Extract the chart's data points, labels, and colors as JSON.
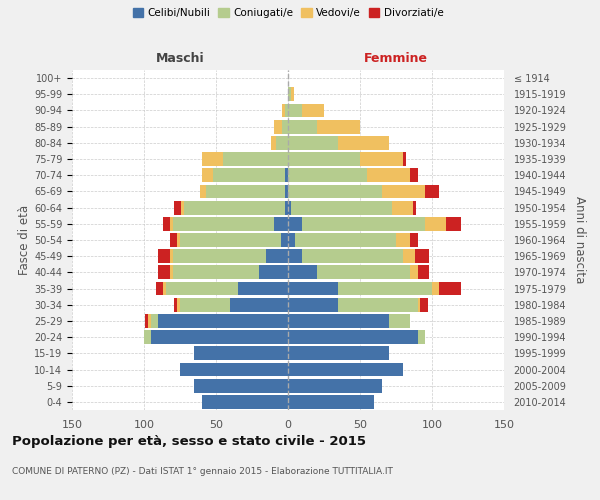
{
  "age_groups": [
    "0-4",
    "5-9",
    "10-14",
    "15-19",
    "20-24",
    "25-29",
    "30-34",
    "35-39",
    "40-44",
    "45-49",
    "50-54",
    "55-59",
    "60-64",
    "65-69",
    "70-74",
    "75-79",
    "80-84",
    "85-89",
    "90-94",
    "95-99",
    "100+"
  ],
  "birth_years": [
    "2010-2014",
    "2005-2009",
    "2000-2004",
    "1995-1999",
    "1990-1994",
    "1985-1989",
    "1980-1984",
    "1975-1979",
    "1970-1974",
    "1965-1969",
    "1960-1964",
    "1955-1959",
    "1950-1954",
    "1945-1949",
    "1940-1944",
    "1935-1939",
    "1930-1934",
    "1925-1929",
    "1920-1924",
    "1915-1919",
    "≤ 1914"
  ],
  "male_celibe": [
    60,
    65,
    75,
    65,
    95,
    90,
    40,
    35,
    20,
    15,
    5,
    10,
    2,
    2,
    2,
    0,
    0,
    0,
    0,
    0,
    0
  ],
  "male_coniugato": [
    0,
    0,
    0,
    0,
    5,
    5,
    35,
    50,
    60,
    65,
    70,
    70,
    70,
    55,
    50,
    45,
    8,
    4,
    2,
    0,
    0
  ],
  "male_vedovo": [
    0,
    0,
    0,
    0,
    0,
    2,
    2,
    2,
    2,
    2,
    2,
    2,
    2,
    4,
    8,
    15,
    4,
    6,
    2,
    0,
    0
  ],
  "male_divorziato": [
    0,
    0,
    0,
    0,
    0,
    2,
    2,
    5,
    8,
    8,
    5,
    5,
    5,
    0,
    0,
    0,
    0,
    0,
    0,
    0,
    0
  ],
  "female_nubile": [
    60,
    65,
    80,
    70,
    90,
    70,
    35,
    35,
    20,
    10,
    5,
    10,
    2,
    0,
    0,
    0,
    0,
    0,
    0,
    0,
    0
  ],
  "female_coniugata": [
    0,
    0,
    0,
    0,
    5,
    15,
    55,
    65,
    65,
    70,
    70,
    85,
    70,
    65,
    55,
    50,
    35,
    20,
    10,
    2,
    0
  ],
  "female_vedova": [
    0,
    0,
    0,
    0,
    0,
    0,
    2,
    5,
    5,
    8,
    10,
    15,
    15,
    30,
    30,
    30,
    35,
    30,
    15,
    2,
    0
  ],
  "female_divorziata": [
    0,
    0,
    0,
    0,
    0,
    0,
    5,
    15,
    8,
    10,
    5,
    10,
    2,
    10,
    5,
    2,
    0,
    0,
    0,
    0,
    0
  ],
  "color_celibe": "#4472a8",
  "color_coniugato": "#b5cc8e",
  "color_vedovo": "#f0c060",
  "color_divorziato": "#cc2222",
  "xlim": 150,
  "title": "Popolazione per età, sesso e stato civile - 2015",
  "subtitle": "COMUNE DI PATERNO (PZ) - Dati ISTAT 1° gennaio 2015 - Elaborazione TUTTITALIA.IT",
  "ylabel_left": "Fasce di età",
  "ylabel_right": "Anni di nascita",
  "label_maschi": "Maschi",
  "label_femmine": "Femmine",
  "bg_color": "#f0f0f0",
  "plot_bg": "#ffffff",
  "legend_labels": [
    "Celibi/Nubili",
    "Coniugati/e",
    "Vedovi/e",
    "Divorziati/e"
  ]
}
